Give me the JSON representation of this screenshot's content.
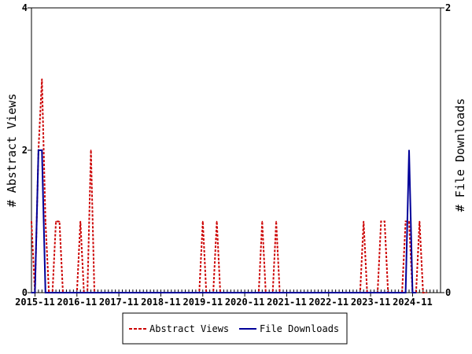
{
  "chart_data": {
    "type": "line",
    "title": "",
    "y_left_label": "# Abstract Views",
    "y_right_label": "# File Downloads",
    "y_left_lim": [
      0,
      4
    ],
    "y_right_lim": [
      0,
      2
    ],
    "y_left_ticks": [
      "0",
      "2",
      "4"
    ],
    "y_right_ticks": [
      "0",
      "2"
    ],
    "x_tick_labels": [
      "2015-11",
      "2016-11",
      "2017-11",
      "2018-11",
      "2019-11",
      "2020-11",
      "2021-11",
      "2022-11",
      "2023-11",
      "2024-11"
    ],
    "grid": false,
    "legend_position": "bottom",
    "series": [
      {
        "name": "Abstract Views",
        "axis": "left",
        "color": "#cc0000",
        "style": "dashed",
        "points": [
          [
            "2015-10",
            1
          ],
          [
            "2015-11",
            0
          ],
          [
            "2015-12",
            2
          ],
          [
            "2016-01",
            3
          ],
          [
            "2016-02",
            1
          ],
          [
            "2016-03",
            0
          ],
          [
            "2016-04",
            0
          ],
          [
            "2016-05",
            1
          ],
          [
            "2016-06",
            1
          ],
          [
            "2016-07",
            0
          ],
          [
            "2016-08",
            0
          ],
          [
            "2016-09",
            0
          ],
          [
            "2016-10",
            0
          ],
          [
            "2016-11",
            0
          ],
          [
            "2016-12",
            1
          ],
          [
            "2017-01",
            0
          ],
          [
            "2017-02",
            0
          ],
          [
            "2017-03",
            2
          ],
          [
            "2017-04",
            0
          ],
          [
            "2017-05",
            0
          ],
          [
            "2019-10",
            0
          ],
          [
            "2019-11",
            1
          ],
          [
            "2019-12",
            0
          ],
          [
            "2020-01",
            0
          ],
          [
            "2020-02",
            0
          ],
          [
            "2020-03",
            1
          ],
          [
            "2020-04",
            0
          ],
          [
            "2021-03",
            0
          ],
          [
            "2021-04",
            1
          ],
          [
            "2021-05",
            0
          ],
          [
            "2021-06",
            0
          ],
          [
            "2021-07",
            0
          ],
          [
            "2021-08",
            1
          ],
          [
            "2021-09",
            0
          ],
          [
            "2023-08",
            0
          ],
          [
            "2023-09",
            1
          ],
          [
            "2023-10",
            0
          ],
          [
            "2023-11",
            0
          ],
          [
            "2023-12",
            0
          ],
          [
            "2024-01",
            0
          ],
          [
            "2024-02",
            1
          ],
          [
            "2024-03",
            1
          ],
          [
            "2024-04",
            0
          ],
          [
            "2024-05",
            0
          ],
          [
            "2024-06",
            0
          ],
          [
            "2024-07",
            0
          ],
          [
            "2024-08",
            0
          ],
          [
            "2024-09",
            1
          ],
          [
            "2024-10",
            1
          ],
          [
            "2024-11",
            0
          ],
          [
            "2024-12",
            0
          ],
          [
            "2025-01",
            1
          ],
          [
            "2025-02",
            0
          ],
          [
            "2025-03",
            0
          ]
        ]
      },
      {
        "name": "File Downloads",
        "axis": "right",
        "color": "#000099",
        "style": "solid",
        "points": [
          [
            "2015-10",
            0
          ],
          [
            "2015-11",
            0
          ],
          [
            "2015-12",
            1
          ],
          [
            "2016-01",
            1
          ],
          [
            "2016-02",
            0
          ],
          [
            "2016-03",
            0
          ],
          [
            "2024-09",
            0
          ],
          [
            "2024-10",
            1
          ],
          [
            "2024-11",
            0
          ],
          [
            "2024-12",
            0
          ]
        ]
      }
    ]
  }
}
